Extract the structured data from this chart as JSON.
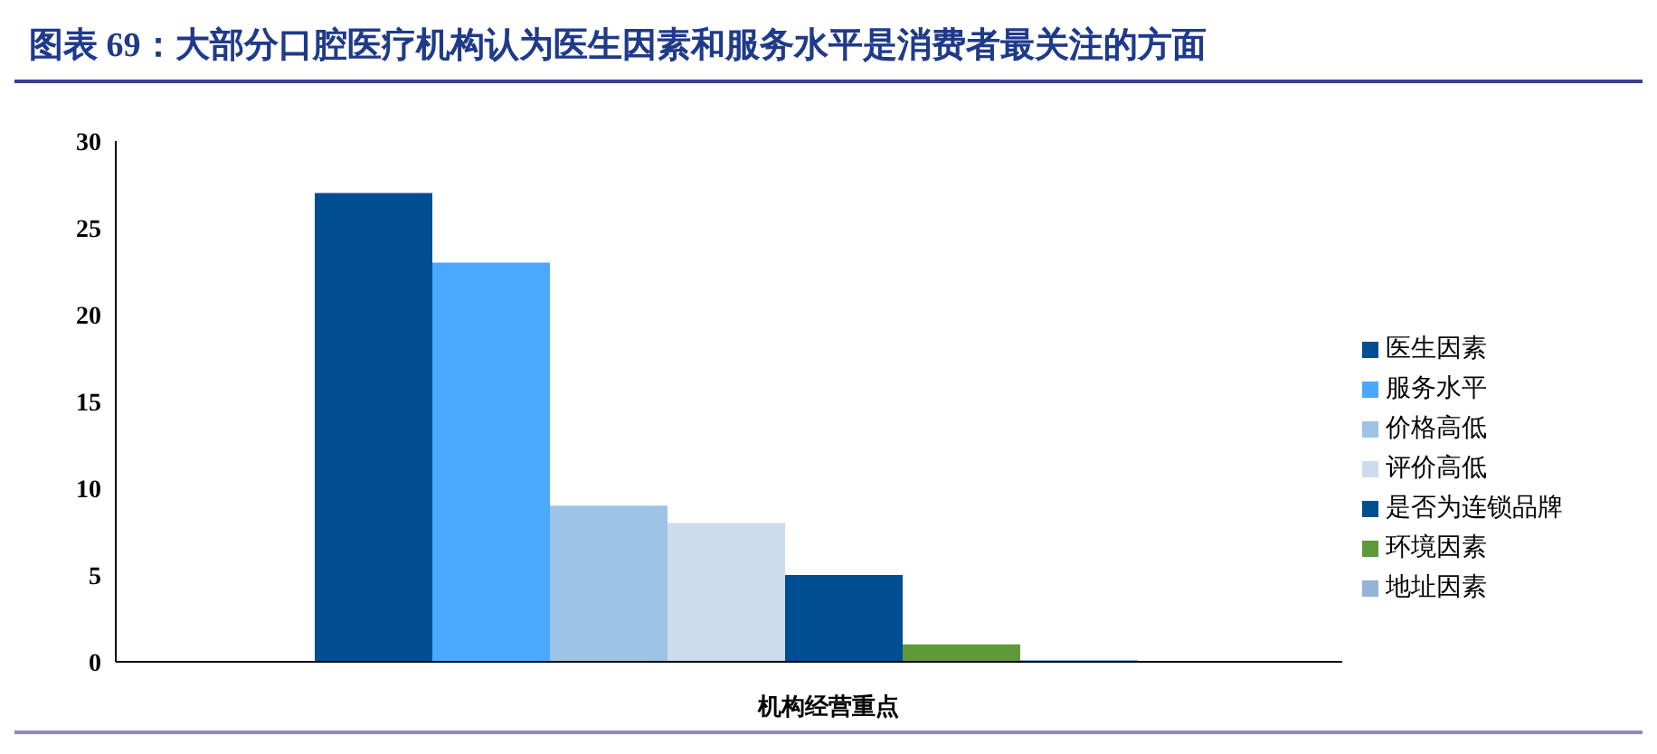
{
  "chart_data": {
    "type": "bar",
    "title": "图表 69：大部分口腔医疗机构认为医生因素和服务水平是消费者最关注的方面",
    "xlabel": "机构经营重点",
    "categories": [
      null
    ],
    "series": [
      {
        "name": "医生因素",
        "color": "#004e92",
        "values": [
          27
        ]
      },
      {
        "name": "服务水平",
        "color": "#4aa8ff",
        "values": [
          23
        ]
      },
      {
        "name": "价格高低",
        "color": "#9dc3e6",
        "values": [
          9
        ]
      },
      {
        "name": "评价高低",
        "color": "#cddcec",
        "values": [
          8
        ]
      },
      {
        "name": "是否为连锁品牌",
        "color": "#004e92",
        "values": [
          5
        ]
      },
      {
        "name": "环境因素",
        "color": "#5f9a3a",
        "values": [
          1
        ]
      },
      {
        "name": "地址因素",
        "color": "#95b3d7",
        "values": [
          0.1
        ]
      }
    ],
    "ylim": [
      0,
      30
    ],
    "yticks": [
      0,
      5,
      10,
      15,
      20,
      25,
      30
    ],
    "grid": false,
    "legend": "right"
  }
}
